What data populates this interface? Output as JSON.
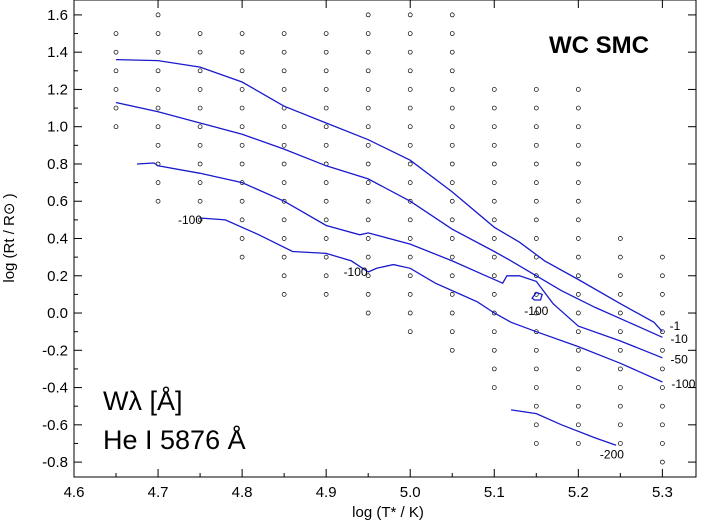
{
  "chart_data": {
    "type": "scatter",
    "title": "WC SMC",
    "xlabel": "log (T* / K)",
    "ylabel": "log (Rt / R⊙ )",
    "xlim": [
      4.6,
      5.34
    ],
    "ylim": [
      -0.88,
      1.68
    ],
    "xticks": [
      "4.6",
      "4.7",
      "4.8",
      "4.9",
      "5.0",
      "5.1",
      "5.2",
      "5.3"
    ],
    "yticks": [
      "1.6",
      "1.4",
      "1.2",
      "1.0",
      "0.8",
      "0.6",
      "0.4",
      "0.2",
      "0.0",
      "-0.2",
      "-0.4",
      "-0.6",
      "-0.8"
    ],
    "annotation": {
      "line1": "Wλ  [Å]",
      "line2": "He I 5876 Å"
    },
    "grid_models": [
      {
        "x": 4.65,
        "y": [
          1.0,
          1.1,
          1.2,
          1.3,
          1.4,
          1.5
        ]
      },
      {
        "x": 4.7,
        "y": [
          0.6,
          0.7,
          0.8,
          0.9,
          1.0,
          1.1,
          1.2,
          1.3,
          1.4,
          1.5,
          1.6
        ]
      },
      {
        "x": 4.75,
        "y": [
          0.5,
          0.6,
          0.7,
          0.8,
          0.9,
          1.0,
          1.1,
          1.2,
          1.3,
          1.4,
          1.5
        ]
      },
      {
        "x": 4.8,
        "y": [
          0.3,
          0.4,
          0.5,
          0.6,
          0.7,
          0.8,
          0.9,
          1.0,
          1.1,
          1.2,
          1.3,
          1.4,
          1.5
        ]
      },
      {
        "x": 4.85,
        "y": [
          0.1,
          0.2,
          0.3,
          0.4,
          0.5,
          0.6,
          0.7,
          0.8,
          0.9,
          1.0,
          1.1,
          1.2,
          1.3,
          1.4,
          1.5
        ]
      },
      {
        "x": 4.9,
        "y": [
          0.1,
          0.2,
          0.3,
          0.4,
          0.5,
          0.6,
          0.7,
          0.8,
          0.9,
          1.0,
          1.1,
          1.2,
          1.3,
          1.4,
          1.5
        ]
      },
      {
        "x": 4.95,
        "y": [
          0.0,
          0.1,
          0.2,
          0.3,
          0.4,
          0.5,
          0.6,
          0.7,
          0.8,
          0.9,
          1.0,
          1.1,
          1.2,
          1.3,
          1.4,
          1.5,
          1.6
        ]
      },
      {
        "x": 5.0,
        "y": [
          -0.1,
          0.0,
          0.1,
          0.2,
          0.3,
          0.4,
          0.5,
          0.6,
          0.7,
          0.8,
          0.9,
          1.0,
          1.1,
          1.2,
          1.3,
          1.4,
          1.5,
          1.6
        ]
      },
      {
        "x": 5.05,
        "y": [
          -0.2,
          -0.1,
          0.0,
          0.1,
          0.2,
          0.3,
          0.4,
          0.5,
          0.6,
          0.7,
          0.8,
          0.9,
          1.0,
          1.1,
          1.2,
          1.3,
          1.4,
          1.5,
          1.6
        ]
      },
      {
        "x": 5.1,
        "y": [
          -0.4,
          -0.3,
          -0.2,
          -0.1,
          0.0,
          0.1,
          0.2,
          0.3,
          0.4,
          0.5,
          0.6,
          0.7,
          0.8,
          0.9,
          1.0,
          1.1,
          1.2
        ]
      },
      {
        "x": 5.15,
        "y": [
          -0.7,
          -0.6,
          -0.5,
          -0.4,
          -0.3,
          -0.2,
          -0.1,
          0.0,
          0.1,
          0.2,
          0.3,
          0.4,
          0.5,
          0.6,
          0.7,
          0.8,
          0.9,
          1.0,
          1.1,
          1.2
        ]
      },
      {
        "x": 5.2,
        "y": [
          -0.7,
          -0.6,
          -0.5,
          -0.4,
          -0.3,
          -0.2,
          -0.1,
          0.0,
          0.1,
          0.2,
          0.3,
          0.4,
          0.5,
          0.6,
          0.7,
          0.8,
          0.9,
          1.0,
          1.1,
          1.2
        ]
      },
      {
        "x": 5.25,
        "y": [
          -0.7,
          -0.6,
          -0.5,
          -0.4,
          -0.3,
          -0.2,
          -0.1,
          0.0,
          0.1,
          0.2,
          0.3,
          0.4
        ]
      },
      {
        "x": 5.3,
        "y": [
          -0.8,
          -0.7,
          -0.6,
          -0.5,
          -0.4,
          -0.3,
          -0.2,
          -0.1,
          0.0,
          0.1,
          0.2,
          0.3
        ]
      }
    ],
    "contours": [
      {
        "level": "-1",
        "points": [
          [
            4.65,
            1.36
          ],
          [
            4.7,
            1.355
          ],
          [
            4.75,
            1.32
          ],
          [
            4.8,
            1.24
          ],
          [
            4.85,
            1.11
          ],
          [
            4.9,
            1.02
          ],
          [
            4.95,
            0.93
          ],
          [
            5.0,
            0.82
          ],
          [
            5.05,
            0.65
          ],
          [
            5.1,
            0.46
          ],
          [
            5.13,
            0.38
          ],
          [
            5.16,
            0.28
          ],
          [
            5.2,
            0.18
          ],
          [
            5.25,
            0.05
          ],
          [
            5.29,
            -0.05
          ],
          [
            5.3,
            -0.1
          ]
        ]
      },
      {
        "level": "-10",
        "points": [
          [
            4.65,
            1.13
          ],
          [
            4.7,
            1.08
          ],
          [
            4.75,
            1.02
          ],
          [
            4.8,
            0.96
          ],
          [
            4.85,
            0.88
          ],
          [
            4.9,
            0.79
          ],
          [
            4.95,
            0.72
          ],
          [
            5.0,
            0.6
          ],
          [
            5.05,
            0.45
          ],
          [
            5.1,
            0.33
          ],
          [
            5.12,
            0.28
          ],
          [
            5.15,
            0.2
          ],
          [
            5.18,
            0.12
          ],
          [
            5.22,
            0.03
          ],
          [
            5.26,
            -0.05
          ],
          [
            5.3,
            -0.13
          ]
        ]
      },
      {
        "level": "-50",
        "points": [
          [
            4.675,
            0.8
          ],
          [
            4.695,
            0.805
          ],
          [
            4.7,
            0.79
          ],
          [
            4.75,
            0.75
          ],
          [
            4.8,
            0.7
          ],
          [
            4.85,
            0.6
          ],
          [
            4.9,
            0.47
          ],
          [
            4.94,
            0.42
          ],
          [
            4.95,
            0.43
          ],
          [
            5.0,
            0.37
          ],
          [
            5.05,
            0.28
          ],
          [
            5.09,
            0.2
          ],
          [
            5.11,
            0.16
          ],
          [
            5.115,
            0.2
          ],
          [
            5.13,
            0.2
          ],
          [
            5.15,
            0.17
          ],
          [
            5.17,
            0.05
          ],
          [
            5.2,
            -0.07
          ],
          [
            5.25,
            -0.15
          ],
          [
            5.3,
            -0.24
          ]
        ]
      },
      {
        "level": "-100",
        "points": [
          [
            4.75,
            0.51
          ],
          [
            4.78,
            0.5
          ],
          [
            4.82,
            0.42
          ],
          [
            4.86,
            0.33
          ],
          [
            4.9,
            0.32
          ],
          [
            4.93,
            0.28
          ],
          [
            4.95,
            0.22
          ],
          [
            4.96,
            0.24
          ],
          [
            4.98,
            0.26
          ],
          [
            5.0,
            0.24
          ],
          [
            5.03,
            0.16
          ],
          [
            5.06,
            0.1
          ],
          [
            5.08,
            0.06
          ],
          [
            5.1,
            0.0
          ],
          [
            5.12,
            -0.05
          ],
          [
            5.15,
            -0.1
          ],
          [
            5.2,
            -0.18
          ],
          [
            5.25,
            -0.27
          ],
          [
            5.3,
            -0.37
          ]
        ]
      },
      {
        "level": "-100 loop",
        "closed": true,
        "points": [
          [
            5.145,
            0.08
          ],
          [
            5.15,
            0.11
          ],
          [
            5.157,
            0.1
          ],
          [
            5.155,
            0.07
          ],
          [
            5.148,
            0.07
          ],
          [
            5.145,
            0.08
          ]
        ]
      },
      {
        "level": "-200",
        "points": [
          [
            5.12,
            -0.52
          ],
          [
            5.15,
            -0.54
          ],
          [
            5.18,
            -0.6
          ],
          [
            5.22,
            -0.67
          ],
          [
            5.245,
            -0.71
          ]
        ]
      }
    ],
    "contour_labels": [
      {
        "text": "-100",
        "x": 4.738,
        "y": 0.5
      },
      {
        "text": "-100",
        "x": 4.935,
        "y": 0.22
      },
      {
        "text": "-100",
        "x": 5.15,
        "y": 0.01
      },
      {
        "text": "-1",
        "x": 5.315,
        "y": -0.07
      },
      {
        "text": "-10",
        "x": 5.32,
        "y": -0.14
      },
      {
        "text": "-50",
        "x": 5.32,
        "y": -0.25
      },
      {
        "text": "-100",
        "x": 5.325,
        "y": -0.38
      },
      {
        "text": "-200",
        "x": 5.24,
        "y": -0.76
      }
    ],
    "colors": {
      "contour": "#1a1acc",
      "axis": "#000000",
      "marker": "#000000"
    }
  }
}
